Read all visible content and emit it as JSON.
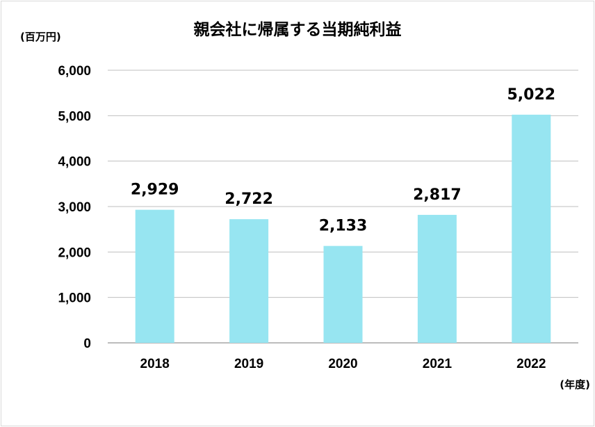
{
  "chart_data": {
    "type": "bar",
    "title": "親会社に帰属する当期純利益",
    "ylabel": "(百万円)",
    "xlabel": "(年度)",
    "categories": [
      "2018",
      "2019",
      "2020",
      "2021",
      "2022"
    ],
    "values": [
      2929,
      2722,
      2133,
      2817,
      5022
    ],
    "data_labels": [
      "2,929",
      "2,722",
      "2,133",
      "2,817",
      "5,022"
    ],
    "ylim": [
      0,
      6000
    ],
    "yticks": [
      0,
      1000,
      2000,
      3000,
      4000,
      5000,
      6000
    ],
    "ytick_labels": [
      "0",
      "1,000",
      "2,000",
      "3,000",
      "4,000",
      "5,000",
      "6,000"
    ],
    "grid": true,
    "legend": "none",
    "colors": {
      "bar": "#97e5f1",
      "grid": "#bfbfbf",
      "axis": "#a6a6a6"
    }
  }
}
